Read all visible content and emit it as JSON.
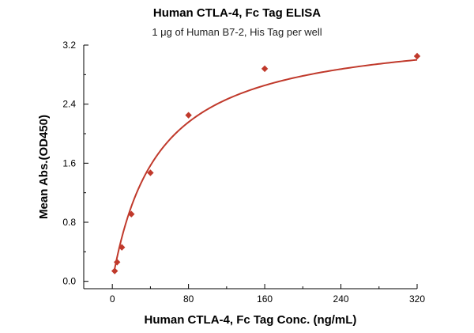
{
  "chart_data": {
    "type": "scatter",
    "title": "Human CTLA-4, Fc Tag ELISA",
    "subtitle": "1 μg of Human B7-2, His Tag per well",
    "xlabel": "Human CTLA-4, Fc Tag Conc. (ng/mL)",
    "ylabel": "Mean Abs.(OD450)",
    "xlim": [
      -30,
      320
    ],
    "ylim": [
      -0.1,
      3.2
    ],
    "x_ticks": [
      0,
      80,
      160,
      240,
      320
    ],
    "y_ticks": [
      0.0,
      0.8,
      1.6,
      2.4,
      3.2
    ],
    "y_tick_labels": [
      "0.0",
      "0.8",
      "1.6",
      "2.4",
      "3.2"
    ],
    "grid": false,
    "series": [
      {
        "marker": "diamond",
        "color": "#c0392b",
        "x": [
          2.5,
          5,
          10,
          20,
          40,
          80,
          160,
          320
        ],
        "y": [
          0.14,
          0.26,
          0.46,
          0.91,
          1.47,
          2.25,
          2.88,
          3.05
        ]
      }
    ],
    "fit_curve": {
      "color": "#c0392b",
      "model": "hyperbolic",
      "vmax": 3.45,
      "k": 48,
      "x_range": [
        2.5,
        320
      ]
    }
  }
}
